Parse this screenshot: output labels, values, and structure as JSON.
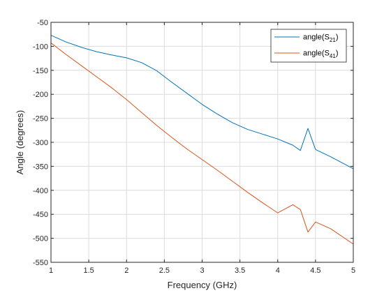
{
  "chart_data": {
    "type": "line",
    "xlabel": "Frequency (GHz)",
    "ylabel": "Angle (degrees)",
    "xlim": [
      1,
      5
    ],
    "ylim": [
      -550,
      -50
    ],
    "xticks": [
      1,
      1.5,
      2,
      2.5,
      3,
      3.5,
      4,
      4.5,
      5
    ],
    "yticks": [
      -550,
      -500,
      -450,
      -400,
      -350,
      -300,
      -250,
      -200,
      -150,
      -100,
      -50
    ],
    "xtick_labels": [
      "1",
      "1.5",
      "2",
      "2.5",
      "3",
      "3.5",
      "4",
      "4.5",
      "5"
    ],
    "ytick_labels": [
      "-550",
      "-500",
      "-450",
      "-400",
      "-350",
      "-300",
      "-250",
      "-200",
      "-150",
      "-100",
      "-50"
    ],
    "grid": true,
    "legend_position": "top-right",
    "series": [
      {
        "name_base": "angle(S",
        "name_sub": "21",
        "name_tail": ")",
        "color": "#0072BD",
        "x": [
          1.0,
          1.2,
          1.4,
          1.6,
          1.8,
          2.0,
          2.2,
          2.4,
          2.6,
          2.8,
          3.0,
          3.2,
          3.4,
          3.6,
          3.8,
          4.0,
          4.2,
          4.3,
          4.4,
          4.5,
          4.7,
          5.0
        ],
        "y": [
          -77,
          -91,
          -102,
          -111,
          -118,
          -124,
          -134,
          -151,
          -175,
          -198,
          -221,
          -241,
          -259,
          -273,
          -283,
          -293,
          -306,
          -317,
          -271,
          -315,
          -330,
          -355
        ]
      },
      {
        "name_base": "angle(S",
        "name_sub": "41",
        "name_tail": ")",
        "color": "#D95319",
        "x": [
          1.0,
          1.2,
          1.4,
          1.6,
          1.8,
          2.0,
          2.2,
          2.4,
          2.6,
          2.8,
          3.0,
          3.2,
          3.4,
          3.6,
          3.8,
          4.0,
          4.2,
          4.3,
          4.4,
          4.5,
          4.7,
          5.0
        ],
        "y": [
          -93,
          -117,
          -140,
          -163,
          -186,
          -211,
          -238,
          -265,
          -290,
          -314,
          -336,
          -358,
          -381,
          -404,
          -426,
          -447,
          -430,
          -440,
          -487,
          -466,
          -480,
          -512
        ]
      }
    ]
  }
}
